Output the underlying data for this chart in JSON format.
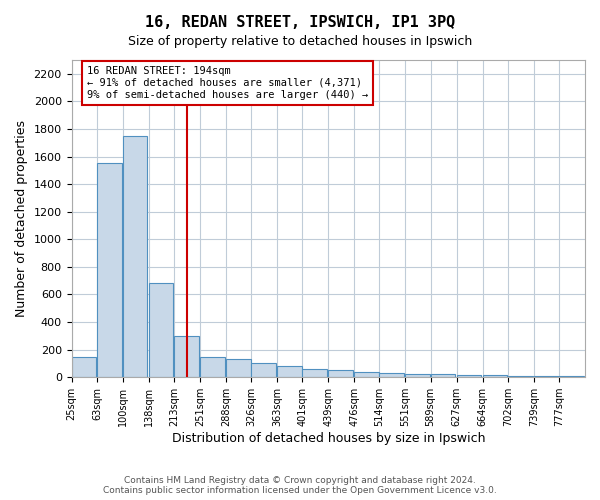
{
  "title": "16, REDAN STREET, IPSWICH, IP1 3PQ",
  "subtitle": "Size of property relative to detached houses in Ipswich",
  "xlabel": "Distribution of detached houses by size in Ipswich",
  "ylabel": "Number of detached properties",
  "footer_line1": "Contains HM Land Registry data © Crown copyright and database right 2024.",
  "footer_line2": "Contains public sector information licensed under the Open Government Licence v3.0.",
  "property_size": 194,
  "property_label": "16 REDAN STREET: 194sqm",
  "annotation_line1": "← 91% of detached houses are smaller (4,371)",
  "annotation_line2": "9% of semi-detached houses are larger (440) →",
  "bin_labels": [
    "25sqm",
    "63sqm",
    "100sqm",
    "138sqm",
    "213sqm",
    "251sqm",
    "288sqm",
    "326sqm",
    "363sqm",
    "401sqm",
    "439sqm",
    "476sqm",
    "514sqm",
    "551sqm",
    "589sqm",
    "627sqm",
    "664sqm",
    "702sqm",
    "739sqm",
    "777sqm"
  ],
  "bin_lefts": [
    25,
    63,
    100,
    138,
    175,
    213,
    251,
    288,
    326,
    363,
    401,
    439,
    476,
    514,
    551,
    589,
    627,
    664,
    702,
    739
  ],
  "bin_width": 37,
  "bar_heights": [
    150,
    1550,
    1750,
    680,
    300,
    150,
    130,
    100,
    80,
    60,
    50,
    40,
    30,
    25,
    20,
    18,
    15,
    12,
    10,
    8
  ],
  "bar_color": "#c8d8e8",
  "bar_edge_color": "#5090c0",
  "vline_color": "#cc0000",
  "vline_x": 194,
  "annotation_box_color": "#cc0000",
  "ylim": [
    0,
    2300
  ],
  "yticks": [
    0,
    200,
    400,
    600,
    800,
    1000,
    1200,
    1400,
    1600,
    1800,
    2000,
    2200
  ],
  "background_color": "#ffffff",
  "grid_color": "#c0ccd8"
}
